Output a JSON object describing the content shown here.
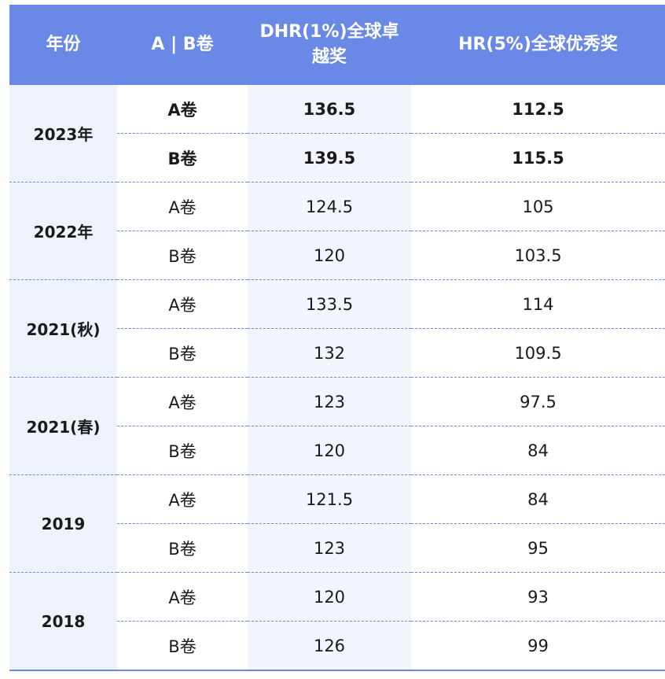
{
  "headers": [
    "年份",
    "A | B卷",
    "DHR(1%)全球卓越奖",
    "HR(5%)全球优秀奖"
  ],
  "groups": [
    {
      "year": "2023年",
      "bold": true,
      "rows": [
        [
          "A卷",
          "136.5",
          "112.5"
        ],
        [
          "B卷",
          "139.5",
          "115.5"
        ]
      ]
    },
    {
      "year": "2022年",
      "bold": false,
      "rows": [
        [
          "A卷",
          "124.5",
          "105"
        ],
        [
          "B卷",
          "120",
          "103.5"
        ]
      ]
    },
    {
      "year": "2021(秋)",
      "bold": false,
      "rows": [
        [
          "A卷",
          "133.5",
          "114"
        ],
        [
          "B卷",
          "132",
          "109.5"
        ]
      ]
    },
    {
      "year": "2021(春)",
      "bold": false,
      "rows": [
        [
          "A卷",
          "123",
          "97.5"
        ],
        [
          "B卷",
          "120",
          "84"
        ]
      ]
    },
    {
      "year": "2019",
      "bold": false,
      "rows": [
        [
          "A卷",
          "121.5",
          "84"
        ],
        [
          "B卷",
          "123",
          "95"
        ]
      ]
    },
    {
      "year": "2018",
      "bold": false,
      "rows": [
        [
          "A卷",
          "120",
          "93"
        ],
        [
          "B卷",
          "126",
          "99"
        ]
      ]
    }
  ]
}
